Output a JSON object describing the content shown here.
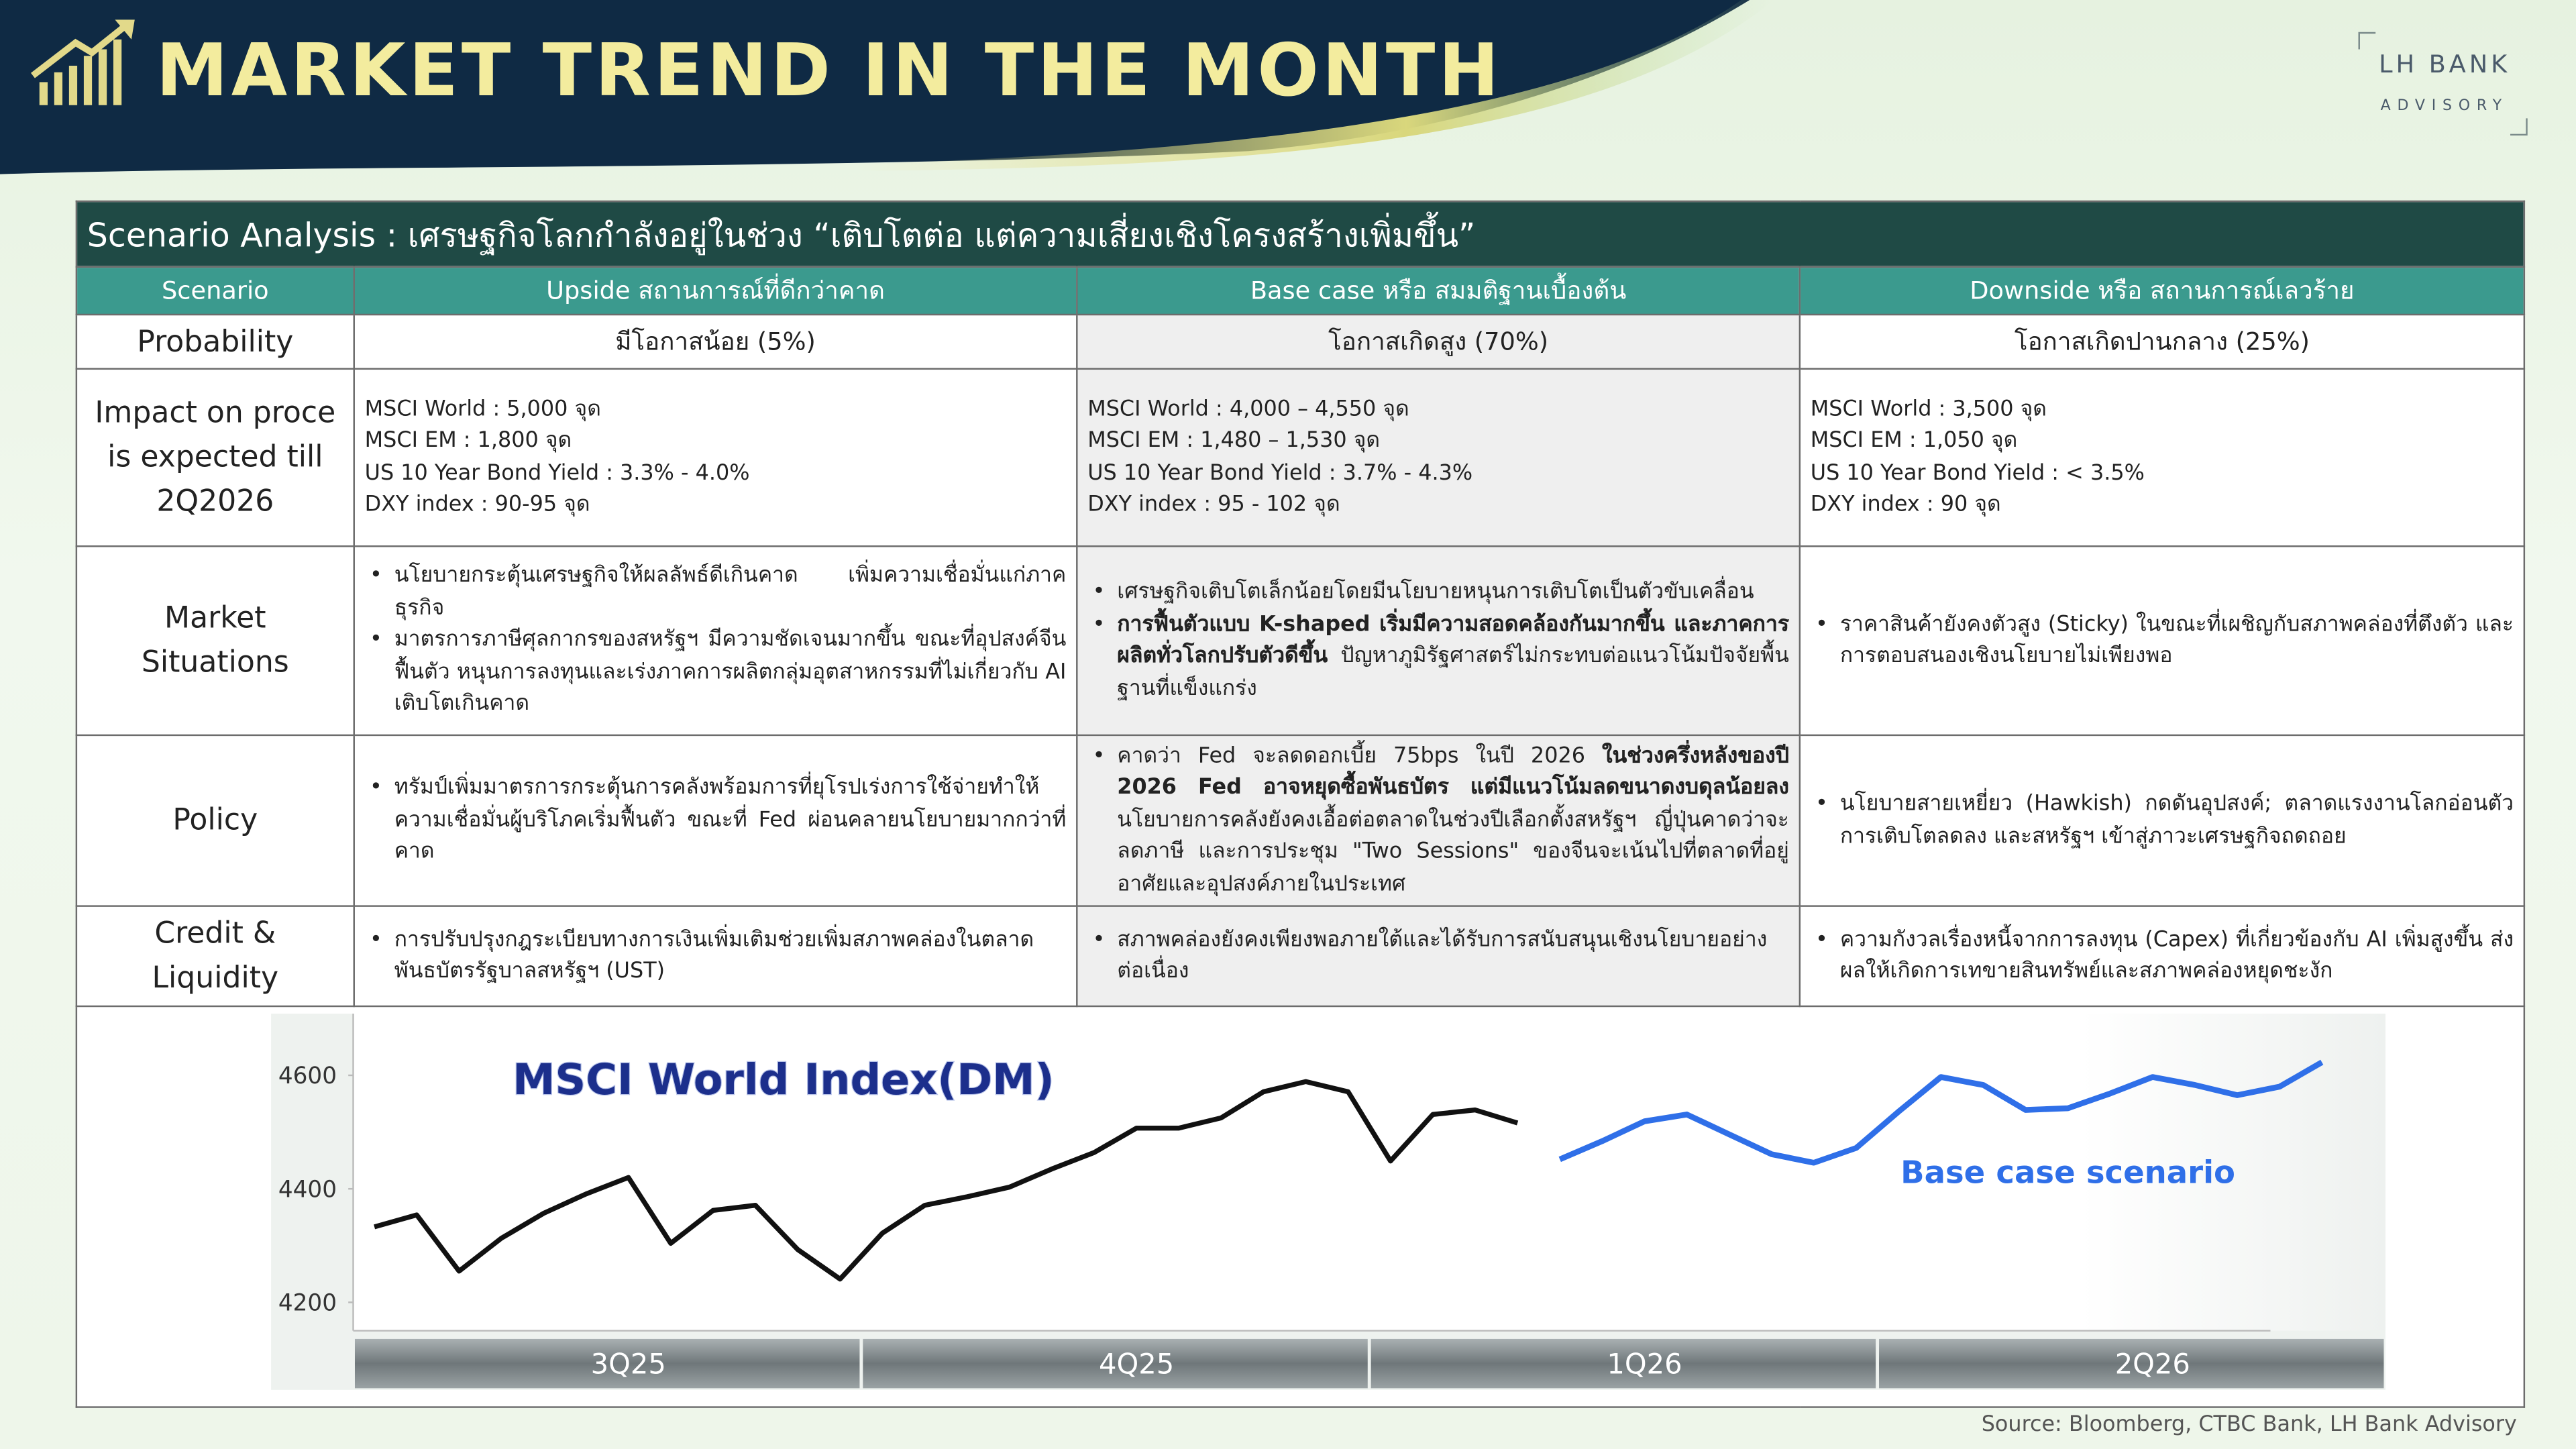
{
  "header": {
    "title": "MARKET TREND IN THE MONTH",
    "brand": "LH BANK",
    "brand_sub": "ADVISORY"
  },
  "table": {
    "title": "Scenario Analysis : เศรษฐกิจโลกกำลังอยู่ในช่วง “เติบโตต่อ แต่ความเสี่ยงเชิงโครงสร้างเพิ่มขึ้น”",
    "columns": [
      "Scenario",
      "Upside สถานการณ์ที่ดีกว่าคาด",
      "Base case หรือ สมมติฐานเบื้องต้น",
      "Downside หรือ สถานการณ์เลวร้าย"
    ],
    "rows": [
      {
        "label": "Probability",
        "cells": [
          "มีโอกาสน้อย (5%)",
          "โอกาสเกิดสูง (70%)",
          "โอกาสเกิดปานกลาง (25%)"
        ]
      },
      {
        "label": [
          "Impact on proce",
          "is expected till",
          "2Q2026"
        ],
        "cells": [
          [
            "MSCI World : 5,000 จุด",
            "MSCI EM : 1,800 จุด",
            "US 10 Year Bond Yield : 3.3% - 4.0%",
            "DXY index : 90-95 จุด"
          ],
          [
            "MSCI World : 4,000 – 4,550 จุด",
            "MSCI EM : 1,480 – 1,530 จุด",
            "US 10 Year Bond Yield : 3.7% - 4.3%",
            "DXY index : 95 - 102 จุด"
          ],
          [
            "MSCI World : 3,500 จุด",
            "MSCI EM : 1,050 จุด",
            "US 10 Year Bond Yield : < 3.5%",
            "DXY index :  90 จุด"
          ]
        ]
      },
      {
        "label": "Market Situations",
        "cells": [
          {
            "bullets": [
              [
                "นโยบายกระตุ้นเศรษฐกิจให้ผลลัพธ์ดีเกินคาด เพิ่มความเชื่อมั่นแก่ภาคธุรกิจ"
              ],
              [
                "มาตรการภาษีศุลกากรของสหรัฐฯ มีความชัดเจนมากขึ้น ขณะที่อุปสงค์จีนฟื้นตัว หนุนการลงทุนและเร่งภาคการผลิตกลุ่มอุตสาหกรรมที่ไม่เกี่ยวกับ AI เติบโตเกินคาด"
              ]
            ]
          },
          {
            "bullets": [
              [
                "เศรษฐกิจเติบโตเล็กน้อยโดยมีนโยบายหนุนการเติบโตเป็นตัวขับเคลื่อน"
              ],
              [
                {
                  "bold": "การฟื้นตัวแบบ K-shaped เริ่มมีความสอดคล้องกันมากขึ้น และภาคการผลิตทั่วโลกปรับตัวดีขึ้น"
                },
                " ปัญหาภูมิรัฐศาสตร์ไม่กระทบต่อแนวโน้มปัจจัยพื้นฐานที่แข็งแกร่ง"
              ]
            ]
          },
          {
            "bullets": [
              [
                "ราคาสินค้ายังคงตัวสูง (Sticky) ในขณะที่เผชิญกับสภาพคล่องที่ตึงตัว และการตอบสนองเชิงนโยบายไม่เพียงพอ"
              ]
            ]
          }
        ]
      },
      {
        "label": "Policy",
        "cells": [
          {
            "bullets": [
              [
                "ทรัมป์เพิ่มมาตรการกระตุ้นการคลังพร้อมการที่ยุโรปเร่งการใช้จ่ายทำให้ความเชื่อมั่นผู้บริโภคเริ่มฟื้นตัว ขณะที่ Fed ผ่อนคลายนโยบายมากกว่าที่คาด"
              ]
            ]
          },
          {
            "bullets": [
              [
                "คาดว่า Fed จะลดดอกเบี้ย 75bps ในปี 2026 ",
                {
                  "bold": "ในช่วงครึ่งหลังของปี 2026 Fed อาจหยุดซื้อพันธบัตร แต่มีแนวโน้มลดขนาดงบดุลน้อยลง"
                },
                " นโยบายการคลังยังคงเอื้อต่อตลาดในช่วงปีเลือกตั้งสหรัฐฯ ญี่ปุ่นคาดว่าจะลดภาษี และการประชุม \"Two Sessions\" ของจีนจะเน้นไปที่ตลาดที่อยู่อาศัยและอุปสงค์ภายในประเทศ"
              ]
            ]
          },
          {
            "bullets": [
              [
                "นโยบายสายเหยี่ยว (Hawkish) กดดันอุปสงค์; ตลาดแรงงานโลกอ่อนตัว การเติบโตลดลง และสหรัฐฯ เข้าสู่ภาวะเศรษฐกิจถดถอย"
              ]
            ]
          }
        ]
      },
      {
        "label": "Credit & Liquidity",
        "cells": [
          {
            "bullets": [
              [
                "การปรับปรุงกฎระเบียบทางการเงินเพิ่มเติมช่วยเพิ่มสภาพคล่องในตลาดพันธบัตรรัฐบาลสหรัฐฯ (UST)"
              ]
            ]
          },
          {
            "bullets": [
              [
                "สภาพคล่องยังคงเพียงพอภายใต้และได้รับการสนับสนุนเชิงนโยบายอย่างต่อเนื่อง"
              ]
            ]
          },
          {
            "bullets": [
              [
                "ความกังวลเรื่องหนี้จากการลงทุน (Capex) ที่เกี่ยวข้องกับ AI เพิ่มสูงขึ้น ส่งผลให้เกิดการเทขายสินทรัพย์และสภาพคล่องหยุดชะงัก"
              ]
            ]
          }
        ]
      }
    ]
  },
  "chart_data": {
    "type": "line",
    "title": "MSCI World Index(DM)",
    "categories": [
      null,
      null,
      null,
      null,
      null,
      null,
      "3Q25",
      null,
      null,
      null,
      null,
      null,
      null,
      null,
      null,
      null,
      null,
      null,
      "4Q25",
      null,
      null,
      null,
      null,
      null,
      null,
      null,
      null,
      null,
      null,
      null,
      "1Q26",
      null,
      null,
      null,
      null,
      null,
      null,
      null,
      null,
      null,
      null,
      null,
      "2Q26",
      null,
      null,
      null,
      null,
      null
    ],
    "series": [
      {
        "color": "#111111",
        "values": [
          4333,
          4354,
          4255,
          4313,
          4357,
          4391,
          4420,
          4304,
          4362,
          4371,
          4293,
          4241,
          4322,
          4371,
          4386,
          4403,
          4435,
          4464,
          4507,
          4507,
          4525,
          4571,
          4589,
          4571,
          4449,
          4531,
          4539,
          4516,
          null,
          null,
          null,
          null,
          null,
          null,
          null,
          null,
          null,
          null,
          null,
          null,
          null,
          null,
          null,
          null,
          null,
          null,
          null,
          null
        ]
      },
      {
        "name": "Base case scenario",
        "color": "#2f6fe8",
        "values": [
          null,
          null,
          null,
          null,
          null,
          null,
          null,
          null,
          null,
          null,
          null,
          null,
          null,
          null,
          null,
          null,
          null,
          null,
          null,
          null,
          null,
          null,
          null,
          null,
          null,
          null,
          null,
          null,
          4452,
          4484,
          4519,
          4531,
          4496,
          4461,
          4446,
          4472,
          4536,
          4597,
          4583,
          4539,
          4542,
          4568,
          4597,
          4583,
          4565,
          4580,
          4623,
          null
        ]
      }
    ],
    "ylim": [
      4150,
      4700
    ],
    "yticks": [
      4200,
      4400,
      4600
    ],
    "grid": false
  },
  "source": "Source: Bloomberg, CTBC Bank, LH Bank Advisory"
}
